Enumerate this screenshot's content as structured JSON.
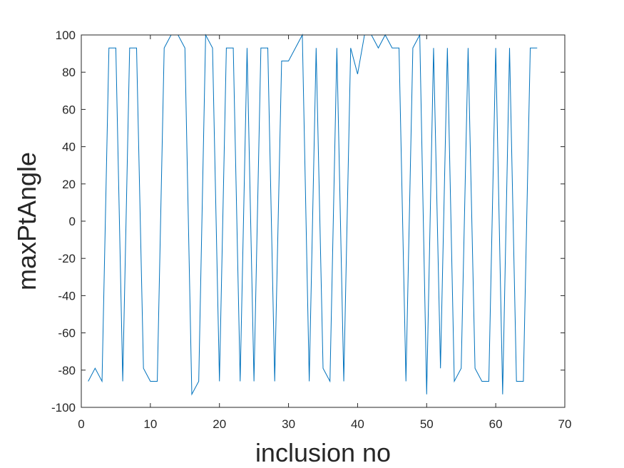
{
  "chart_data": {
    "type": "line",
    "xlabel": "inclusion no",
    "ylabel": "maxPtAngle",
    "xlim": [
      0,
      70
    ],
    "ylim": [
      -100,
      100
    ],
    "xticks": [
      0,
      10,
      20,
      30,
      40,
      50,
      60,
      70
    ],
    "yticks": [
      -100,
      -80,
      -60,
      -40,
      -20,
      0,
      20,
      40,
      60,
      80,
      100
    ],
    "grid": false,
    "line_color": "#0072BD",
    "series": [
      {
        "x": [
          1,
          2,
          3,
          4,
          5,
          6,
          7,
          8,
          9,
          10,
          11,
          12,
          13,
          14,
          15,
          16,
          17,
          18,
          19,
          20,
          21,
          22,
          23,
          24,
          25,
          26,
          27,
          28,
          29,
          30,
          31,
          32,
          33,
          34,
          35,
          36,
          37,
          38,
          39,
          40,
          41,
          42,
          43,
          44,
          45,
          46,
          47,
          48,
          49,
          50,
          51,
          52,
          53,
          54,
          55,
          56,
          57,
          58,
          59,
          60,
          61,
          62,
          63,
          64,
          65,
          66
        ],
        "values": [
          -86,
          -79,
          -86,
          93,
          93,
          -86,
          93,
          93,
          -79,
          -86,
          -86,
          93,
          100,
          100,
          93,
          -93,
          -86,
          100,
          93,
          -86,
          93,
          93,
          -86,
          93,
          -86,
          93,
          93,
          -86,
          86,
          86,
          93,
          100,
          -86,
          93,
          -79,
          -86,
          93,
          -86,
          93,
          79,
          100,
          100,
          93,
          100,
          93,
          93,
          -86,
          93,
          100,
          -93,
          93,
          -79,
          93,
          -86,
          -79,
          93,
          -79,
          -86,
          -86,
          93,
          -93,
          93,
          -86,
          -86,
          93,
          93
        ]
      }
    ]
  }
}
